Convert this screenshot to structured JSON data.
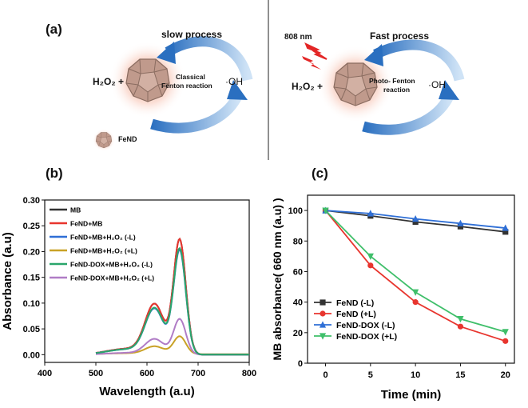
{
  "figure": {
    "panel_a": {
      "label": "(a)",
      "left": {
        "title": "slow process",
        "reactant": "H₂O₂ +",
        "reaction_line1": "Classical",
        "reaction_line2": "Fenton reaction",
        "product": "·OH",
        "legend_label": "FeND"
      },
      "right": {
        "laser": "808 nm",
        "title": "Fast process",
        "reactant": "H₂O₂ +",
        "reaction_line1": "Photo- Fenton",
        "reaction_line2": "reaction",
        "product": "·OH"
      }
    },
    "panel_b": {
      "label": "(b)"
    },
    "panel_c": {
      "label": "(c)"
    }
  },
  "chart_data": [
    {
      "type": "line",
      "panel": "(b)",
      "xlabel": "Wavelength (a.u)",
      "ylabel": "Absorbance (a.u)",
      "xlim": [
        400,
        800
      ],
      "ylim": [
        -0.015,
        0.3
      ],
      "xticks": [
        "400",
        "500",
        "600",
        "700",
        "800"
      ],
      "yticks": [
        "0.00",
        "0.05",
        "0.10",
        "0.15",
        "0.20",
        "0.25",
        "0.30"
      ],
      "legend_position": "top-left",
      "series": [
        {
          "name": "MB",
          "color": "#333333",
          "peak": 0.226
        },
        {
          "name": "FeND+MB",
          "color": "#e8352e",
          "peak": 0.226
        },
        {
          "name": "FeND+MB+H₂O₂ (-L)",
          "color": "#2f6fd6",
          "peak": 0.205
        },
        {
          "name": "FeND+MB+H₂O₂ (+L)",
          "color": "#c9a227",
          "peak": 0.035
        },
        {
          "name": "FeND-DOX+MB+H₂O₂ (-L)",
          "color": "#2aa66b",
          "peak": 0.208
        },
        {
          "name": "FeND-DOX+MB+H₂O₂ (+L)",
          "color": "#b07cc6",
          "peak": 0.07
        }
      ]
    },
    {
      "type": "line",
      "panel": "(c)",
      "xlabel": "Time (min)",
      "ylabel": "MB absorbance( 660 nm (a.u) )",
      "x": [
        0,
        5,
        10,
        15,
        20
      ],
      "xlim": [
        -2,
        21
      ],
      "ylim": [
        0,
        110
      ],
      "xticks": [
        "0",
        "5",
        "10",
        "15",
        "20"
      ],
      "yticks": [
        "0",
        "20",
        "40",
        "60",
        "80",
        "100"
      ],
      "legend_position": "bottom-left",
      "series": [
        {
          "name": "FeND (-L)",
          "color": "#333333",
          "marker": "square",
          "values": [
            100,
            96.5,
            92.5,
            89.5,
            86
          ]
        },
        {
          "name": "FeND (+L)",
          "color": "#e8352e",
          "marker": "circle",
          "values": [
            100,
            64,
            40,
            24,
            14.5
          ]
        },
        {
          "name": "FeND-DOX (-L)",
          "color": "#2f6fd6",
          "marker": "triangle-up",
          "values": [
            100,
            98,
            94.5,
            91.5,
            88.5
          ]
        },
        {
          "name": "FeND-DOX (+L)",
          "color": "#3fbf6a",
          "marker": "triangle-down",
          "values": [
            100,
            70,
            46.5,
            29,
            20.5
          ]
        }
      ]
    }
  ]
}
